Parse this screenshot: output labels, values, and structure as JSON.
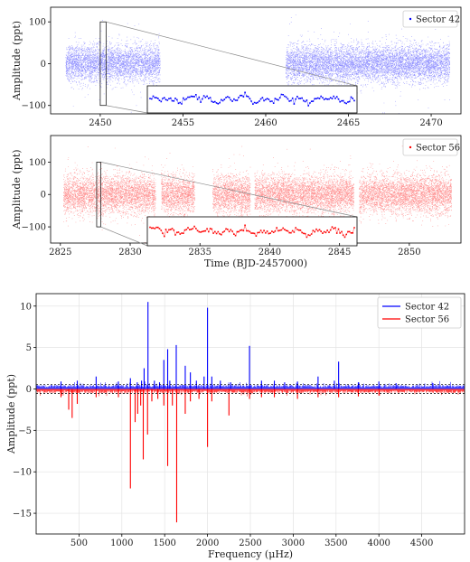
{
  "chart_data": [
    {
      "type": "scatter",
      "panel": "Sector 42 light curve",
      "title": "",
      "xlabel": "",
      "ylabel": "Amplitude (ppt)",
      "xlim": [
        2447.0,
        2471.8
      ],
      "ylim": [
        -120,
        135
      ],
      "xticks": [
        2450,
        2455,
        2460,
        2465,
        2470
      ],
      "yticks": [
        100,
        0,
        -100
      ],
      "xtick_labels": [
        "2450",
        "2455",
        "2460",
        "2465",
        "2470"
      ],
      "ytick_labels": [
        "100",
        "0",
        "−100"
      ],
      "grid": false,
      "legend": {
        "placement": "top-right",
        "entries": [
          "Sector 42"
        ]
      },
      "series": [
        {
          "name": "Sector 42",
          "color": "#0000ff",
          "segments": [
            [
              2447.9,
              2453.6
            ],
            [
              2461.2,
              2471.1
            ]
          ],
          "scatter_ppt": 22,
          "outlier_ppt": 80
        }
      ],
      "inset": {
        "zoom_x": [
          2450.0,
          2450.35
        ],
        "y": [
          -100,
          100
        ]
      }
    },
    {
      "type": "scatter",
      "panel": "Sector 56 light curve",
      "title": "",
      "xlabel": "Time (BJD-2457000)",
      "ylabel": "Amplitude (ppt)",
      "xlim": [
        2824.3,
        2853.7
      ],
      "ylim": [
        -150,
        182
      ],
      "xticks": [
        2825,
        2830,
        2835,
        2840,
        2845,
        2850
      ],
      "yticks": [
        100,
        0,
        -100
      ],
      "xtick_labels": [
        "2825",
        "2830",
        "2835",
        "2840",
        "2845",
        "2850"
      ],
      "ytick_labels": [
        "100",
        "0",
        "−100"
      ],
      "grid": false,
      "legend": {
        "placement": "top-right",
        "entries": [
          "Sector 56"
        ]
      },
      "series": [
        {
          "name": "Sector 56",
          "color": "#ff0000",
          "segments": [
            [
              2825.2,
              2831.8
            ],
            [
              2832.2,
              2834.6
            ],
            [
              2835.9,
              2838.6
            ],
            [
              2838.9,
              2846.0
            ],
            [
              2846.4,
              2853.0
            ]
          ],
          "scatter_ppt": 30,
          "outlier_ppt": 110
        }
      ],
      "inset": {
        "zoom_x": [
          2827.6,
          2827.9
        ],
        "y": [
          -100,
          100
        ]
      }
    },
    {
      "type": "line",
      "panel": "Amplitude spectrum",
      "title": "",
      "xlabel": "Frequency (μHz)",
      "ylabel": "Amplitude (ppt)",
      "xlim": [
        0,
        5000
      ],
      "ylim": [
        -17.5,
        11.5
      ],
      "xticks": [
        500,
        1000,
        1500,
        2000,
        2500,
        3000,
        3500,
        4000,
        4500
      ],
      "yticks": [
        10,
        5,
        0,
        -5,
        -10,
        -15
      ],
      "xtick_labels": [
        "500",
        "1000",
        "1500",
        "2000",
        "2500",
        "3000",
        "3500",
        "4000",
        "4500"
      ],
      "ytick_labels": [
        "10",
        "5",
        "0",
        "−5",
        "−10",
        "−15"
      ],
      "grid": true,
      "threshold_ppt": [
        0.55,
        -0.55
      ],
      "legend": {
        "placement": "top-right",
        "entries": [
          "Sector 42",
          "Sector 56"
        ]
      },
      "series": [
        {
          "name": "Sector 42",
          "color": "#0000ff",
          "direction": 1,
          "peaks": [
            {
              "x": 290,
              "y": 0.9
            },
            {
              "x": 480,
              "y": 1.0
            },
            {
              "x": 700,
              "y": 1.5
            },
            {
              "x": 960,
              "y": 0.9
            },
            {
              "x": 1100,
              "y": 1.3
            },
            {
              "x": 1180,
              "y": 0.8
            },
            {
              "x": 1230,
              "y": 1.0
            },
            {
              "x": 1260,
              "y": 2.5
            },
            {
              "x": 1305,
              "y": 10.5
            },
            {
              "x": 1380,
              "y": 1.0
            },
            {
              "x": 1440,
              "y": 0.8
            },
            {
              "x": 1490,
              "y": 3.5
            },
            {
              "x": 1535,
              "y": 4.8
            },
            {
              "x": 1560,
              "y": 1.0
            },
            {
              "x": 1635,
              "y": 5.3
            },
            {
              "x": 1740,
              "y": 2.8
            },
            {
              "x": 1800,
              "y": 2.0
            },
            {
              "x": 1870,
              "y": 1.0
            },
            {
              "x": 1960,
              "y": 1.5
            },
            {
              "x": 2000,
              "y": 9.8
            },
            {
              "x": 2050,
              "y": 1.5
            },
            {
              "x": 2150,
              "y": 1.0
            },
            {
              "x": 2270,
              "y": 0.8
            },
            {
              "x": 2490,
              "y": 5.2
            },
            {
              "x": 2630,
              "y": 1.0
            },
            {
              "x": 2780,
              "y": 1.0
            },
            {
              "x": 2900,
              "y": 0.8
            },
            {
              "x": 3050,
              "y": 0.9
            },
            {
              "x": 3290,
              "y": 1.5
            },
            {
              "x": 3480,
              "y": 1.0
            },
            {
              "x": 3530,
              "y": 3.3
            },
            {
              "x": 3760,
              "y": 0.8
            },
            {
              "x": 4000,
              "y": 0.9
            },
            {
              "x": 4200,
              "y": 0.7
            },
            {
              "x": 4630,
              "y": 0.7
            }
          ]
        },
        {
          "name": "Sector 56",
          "color": "#ff0000",
          "direction": -1,
          "peaks": [
            {
              "x": 290,
              "y": -1.0
            },
            {
              "x": 380,
              "y": -2.5
            },
            {
              "x": 420,
              "y": -3.5
            },
            {
              "x": 480,
              "y": -1.8
            },
            {
              "x": 700,
              "y": -1.0
            },
            {
              "x": 960,
              "y": -1.0
            },
            {
              "x": 1100,
              "y": -12.0
            },
            {
              "x": 1155,
              "y": -4.0
            },
            {
              "x": 1185,
              "y": -3.0
            },
            {
              "x": 1220,
              "y": -2.0
            },
            {
              "x": 1250,
              "y": -8.5
            },
            {
              "x": 1300,
              "y": -5.5
            },
            {
              "x": 1350,
              "y": -1.5
            },
            {
              "x": 1420,
              "y": -1.2
            },
            {
              "x": 1490,
              "y": -2.0
            },
            {
              "x": 1535,
              "y": -9.3
            },
            {
              "x": 1590,
              "y": -2.0
            },
            {
              "x": 1640,
              "y": -16.1
            },
            {
              "x": 1740,
              "y": -3.0
            },
            {
              "x": 1800,
              "y": -1.5
            },
            {
              "x": 1900,
              "y": -1.2
            },
            {
              "x": 2000,
              "y": -7.0
            },
            {
              "x": 2050,
              "y": -1.5
            },
            {
              "x": 2250,
              "y": -3.2
            },
            {
              "x": 2490,
              "y": -1.2
            },
            {
              "x": 2630,
              "y": -1.0
            },
            {
              "x": 2780,
              "y": -1.0
            },
            {
              "x": 3050,
              "y": -1.2
            },
            {
              "x": 3290,
              "y": -1.0
            },
            {
              "x": 3530,
              "y": -1.0
            },
            {
              "x": 3760,
              "y": -0.9
            },
            {
              "x": 4000,
              "y": -0.8
            }
          ]
        }
      ]
    }
  ]
}
